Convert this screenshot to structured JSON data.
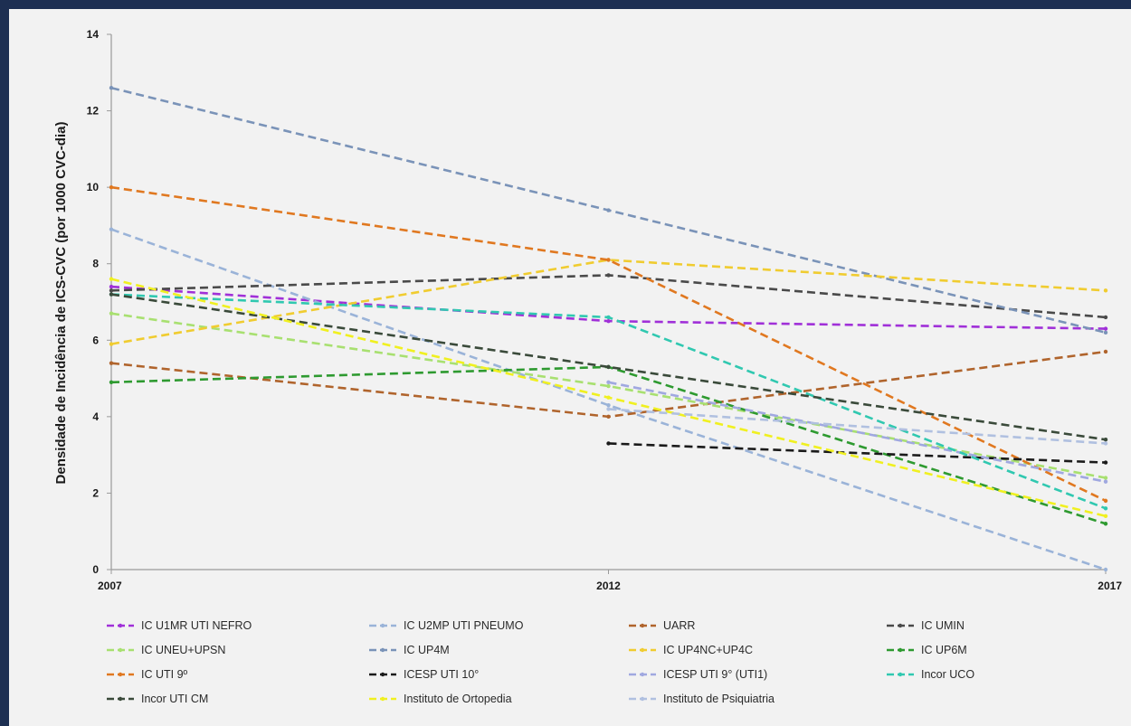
{
  "chart_data": {
    "type": "line",
    "title": "",
    "xlabel": "",
    "ylabel": "Densidade de Incidência de ICS-CVC (por 1000 CVC-dia)",
    "x": [
      "2007",
      "2012",
      "2017"
    ],
    "ylim": [
      0,
      14
    ],
    "yticks": [
      "0",
      "2",
      "4",
      "6",
      "8",
      "10",
      "12",
      "14"
    ],
    "grid": false,
    "legend_position": "bottom",
    "series": [
      {
        "name": "IC U1MR UTI NEFRO",
        "values": [
          7.4,
          6.5,
          6.3
        ],
        "color": "#a030d8"
      },
      {
        "name": "IC U2MP UTI PNEUMO",
        "values": [
          8.9,
          4.3,
          0.0
        ],
        "color": "#9ab3d8"
      },
      {
        "name": "UARR",
        "values": [
          5.4,
          4.0,
          5.7
        ],
        "color": "#b0642c"
      },
      {
        "name": "IC UMIN",
        "values": [
          7.3,
          7.7,
          6.6
        ],
        "color": "#4a4a4a"
      },
      {
        "name": "IC UNEU+UPSN",
        "values": [
          6.7,
          4.8,
          2.4
        ],
        "color": "#a8e070"
      },
      {
        "name": "IC UP4M",
        "values": [
          12.6,
          9.4,
          6.2
        ],
        "color": "#7a93b8"
      },
      {
        "name": "IC UP4NC+UP4C",
        "values": [
          5.9,
          8.1,
          7.3
        ],
        "color": "#f0cc30"
      },
      {
        "name": "IC UP6M",
        "values": [
          4.9,
          5.3,
          1.2
        ],
        "color": "#2e9a30"
      },
      {
        "name": "IC UTI 9º",
        "values": [
          10.0,
          8.1,
          1.8
        ],
        "color": "#e07820"
      },
      {
        "name": "ICESP UTI 10°",
        "values": [
          null,
          3.3,
          2.8
        ],
        "color": "#1a1a1a"
      },
      {
        "name": "ICESP UTI 9° (UTI1)",
        "values": [
          null,
          4.9,
          2.3
        ],
        "color": "#a0a8e0"
      },
      {
        "name": "Incor UCO",
        "values": [
          7.2,
          6.6,
          1.6
        ],
        "color": "#30c8b0"
      },
      {
        "name": "Incor UTI CM",
        "values": [
          7.2,
          5.3,
          3.4
        ],
        "color": "#3a4a3a"
      },
      {
        "name": "Instituto de Ortopedia",
        "values": [
          7.6,
          4.5,
          1.4
        ],
        "color": "#f0f020"
      },
      {
        "name": "Instituto de Psiquiatria",
        "values": [
          null,
          4.2,
          3.3
        ],
        "color": "#b0c0e0"
      }
    ]
  }
}
